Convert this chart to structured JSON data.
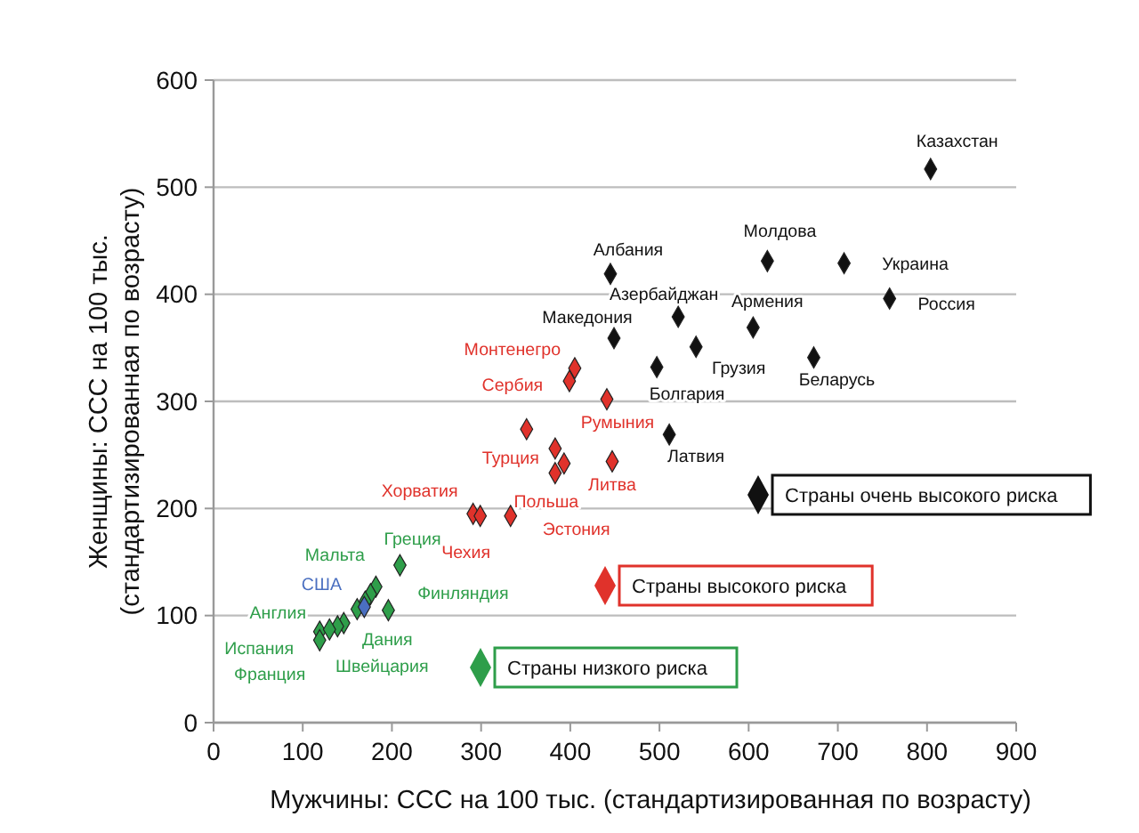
{
  "chart_data": {
    "type": "scatter",
    "xlabel": "Мужчины: ССС на 100 тыс. (стандартизированная по возрасту)",
    "ylabel": "Женщины: ССС на 100 тыс.\n(стандартизированная по возрасту)",
    "xlim": [
      0,
      900
    ],
    "xticks": [
      0,
      100,
      200,
      300,
      400,
      500,
      600,
      700,
      800,
      900
    ],
    "ylim": [
      0,
      600
    ],
    "yticks": [
      0,
      100,
      200,
      300,
      400,
      500,
      600
    ],
    "grid": "y",
    "legend": "right",
    "marker": "diamond",
    "series": [
      {
        "name": "Страны очень высокого риска",
        "color": "#111111",
        "x": [
          804,
          621,
          707,
          758,
          445,
          521,
          605,
          449,
          541,
          673,
          497,
          511
        ],
        "values": [
          517,
          431,
          429,
          396,
          419,
          379,
          369,
          359,
          351,
          341,
          332,
          269
        ]
      },
      {
        "name": "Страны высокого риска",
        "color": "#e0322b",
        "x": [
          405,
          399,
          441,
          351,
          383,
          393,
          447,
          291,
          299,
          333,
          383
        ],
        "values": [
          331,
          319,
          302,
          274,
          256,
          242,
          244,
          195,
          193,
          193,
          233
        ]
      },
      {
        "name": "Страны низкого риска",
        "color": "#2e9e4a",
        "colors": [
          "#2e9e4a",
          "#2e9e4a",
          "#2e9e4a",
          "#2e9e4a",
          "#2e9e4a",
          "#2e9e4a",
          "#2e9e4a",
          "#2e9e4a",
          "#2e9e4a",
          "#2e9e4a",
          "#2e9e4a",
          "#4a6fc0"
        ],
        "x": [
          209,
          182,
          146,
          119,
          119,
          139,
          161,
          196,
          176,
          170,
          130,
          169
        ],
        "values": [
          147,
          127,
          93,
          85,
          77,
          90,
          106,
          105,
          120,
          113,
          87,
          108
        ]
      }
    ],
    "annotations": [
      {
        "text": "Казахстан",
        "x": 804,
        "y": 517
      },
      {
        "text": "Молдова",
        "x": 621,
        "y": 431
      },
      {
        "text": "Украина",
        "x": 707,
        "y": 429
      },
      {
        "text": "Россия",
        "x": 758,
        "y": 396
      },
      {
        "text": "Албания",
        "x": 445,
        "y": 419
      },
      {
        "text": "Азербайджан",
        "x": 521,
        "y": 379
      },
      {
        "text": "Армения",
        "x": 605,
        "y": 369
      },
      {
        "text": "Македония",
        "x": 449,
        "y": 359
      },
      {
        "text": "Грузия",
        "x": 541,
        "y": 351
      },
      {
        "text": "Беларусь",
        "x": 673,
        "y": 341
      },
      {
        "text": "Болгария",
        "x": 497,
        "y": 332
      },
      {
        "text": "Латвия",
        "x": 511,
        "y": 269
      },
      {
        "text": "Монтенегро",
        "x": 405,
        "y": 331
      },
      {
        "text": "Сербия",
        "x": 399,
        "y": 319
      },
      {
        "text": "Румыния",
        "x": 441,
        "y": 302
      },
      {
        "text": "Турция",
        "x": 383,
        "y": 256
      },
      {
        "text": "Польша",
        "x": 393,
        "y": 242
      },
      {
        "text": "Литва",
        "x": 447,
        "y": 244
      },
      {
        "text": "Хорватия",
        "x": 291,
        "y": 195
      },
      {
        "text": "Чехия",
        "x": 299,
        "y": 193
      },
      {
        "text": "Эстония",
        "x": 333,
        "y": 193
      },
      {
        "text": "Греция",
        "x": 209,
        "y": 147
      },
      {
        "text": "Мальта",
        "x": 182,
        "y": 127
      },
      {
        "text": "США",
        "x": 169,
        "y": 108
      },
      {
        "text": "Англия",
        "x": 146,
        "y": 93
      },
      {
        "text": "Испания",
        "x": 119,
        "y": 85
      },
      {
        "text": "Франция",
        "x": 119,
        "y": 77
      },
      {
        "text": "Швейцария",
        "x": 139,
        "y": 90
      },
      {
        "text": "Дания",
        "x": 161,
        "y": 106
      },
      {
        "text": "Финляндия",
        "x": 196,
        "y": 105
      }
    ]
  }
}
